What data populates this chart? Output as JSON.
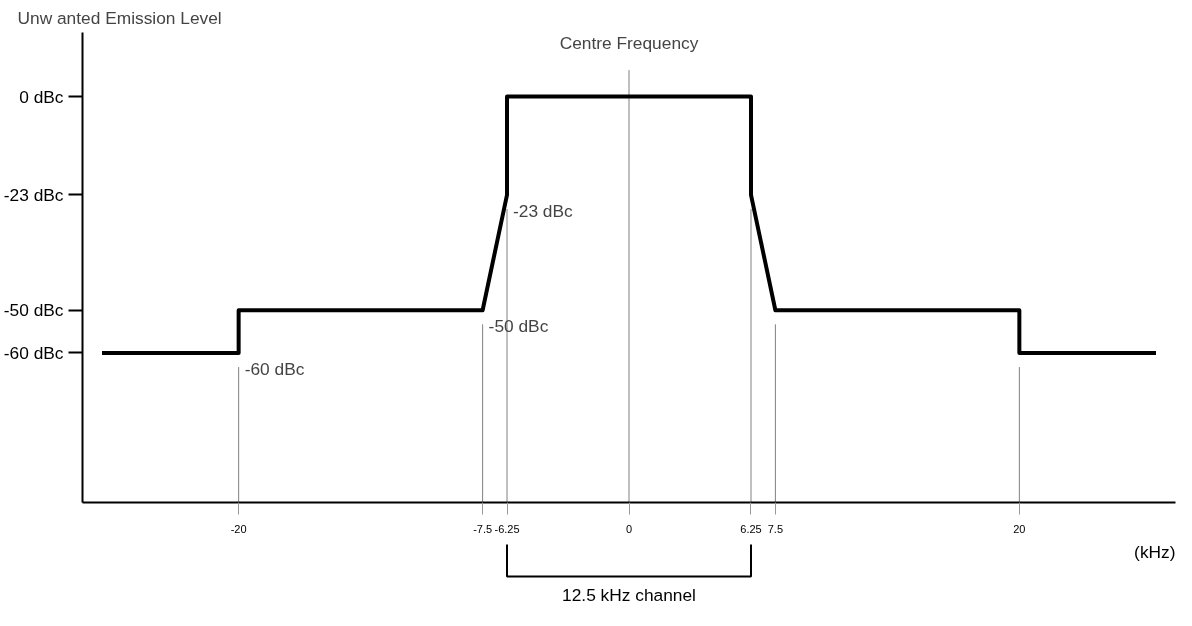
{
  "chart_data": {
    "type": "line",
    "ylabel": "Unw anted Emission Level",
    "xlabel": "(kHz)",
    "x": [
      -27,
      -20,
      -20,
      -7.5,
      -6.25,
      -6.25,
      6.25,
      6.25,
      7.5,
      20,
      20,
      27
    ],
    "series": [
      {
        "color": "#000000",
        "values": [
          -60,
          -60,
          -50,
          -50,
          -23,
          0,
          0,
          -23,
          -50,
          -50,
          -60,
          -60
        ]
      }
    ],
    "xlim": [
      -28,
      28
    ],
    "ylim": [
      -95,
      15
    ],
    "xticks": [
      -20,
      -7.5,
      -6.25,
      0,
      6.25,
      7.5,
      20
    ],
    "yticks": [
      {
        "value": 0,
        "label": "0 dBc"
      },
      {
        "value": -23,
        "label": "-23 dBc"
      },
      {
        "value": -50,
        "label": "-50 dBc"
      },
      {
        "value": -60,
        "label": "-60 dBc"
      }
    ],
    "ref_lines": [
      {
        "axis": "x",
        "value": -20
      },
      {
        "axis": "x",
        "value": -7.5
      },
      {
        "axis": "x",
        "value": -6.25
      },
      {
        "axis": "x",
        "value": 0,
        "label": "Centre Frequency"
      },
      {
        "axis": "x",
        "value": 6.25
      },
      {
        "axis": "x",
        "value": 7.5
      },
      {
        "axis": "x",
        "value": 20
      }
    ],
    "annotations": [
      "12.5 kHz channel",
      {
        "text": "-23 dBc",
        "x": -6.25,
        "y": -23
      },
      {
        "text": "-50 dBc",
        "x": -7.5,
        "y": -50
      },
      {
        "text": "-60 dBc",
        "x": -20,
        "y": -60
      }
    ],
    "grid": false,
    "marker": "none",
    "line_style": "solid"
  }
}
